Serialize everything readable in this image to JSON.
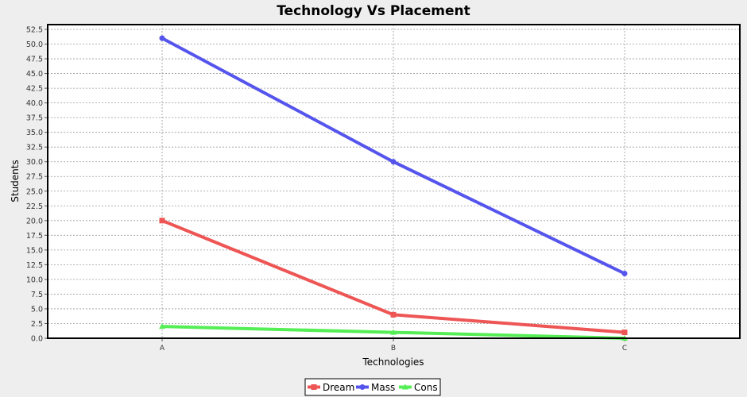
{
  "chart_data": {
    "type": "line",
    "title": "Technology Vs Placement",
    "xlabel": "Technologies",
    "ylabel": "Students",
    "categories": [
      "A",
      "B",
      "C"
    ],
    "ylim": [
      0,
      52.5
    ],
    "ytick_step": 2.5,
    "grid": true,
    "legend_position": "bottom-center",
    "series": [
      {
        "name": "Dream",
        "color": "#ee5555",
        "marker": "square",
        "values": [
          20,
          4,
          1
        ]
      },
      {
        "name": "Mass",
        "color": "#5555ee",
        "marker": "circle",
        "values": [
          51,
          30,
          11
        ]
      },
      {
        "name": "Cons",
        "color": "#55ee55",
        "marker": "triangle",
        "values": [
          2,
          1,
          0
        ]
      }
    ]
  }
}
